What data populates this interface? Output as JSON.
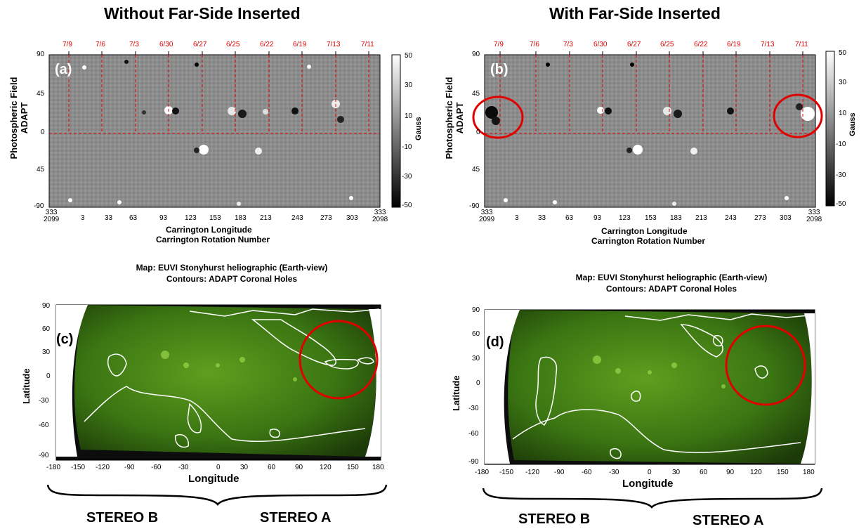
{
  "titles": {
    "left": "Without Far-Side Inserted",
    "right": "With Far-Side Inserted"
  },
  "top_panels": [
    {
      "tag": "(a)",
      "ylabel_line1": "Photospheric  Field",
      "ylabel_line2": "ADAPT"
    },
    {
      "tag": "(b)",
      "ylabel_line1": "Photospheric  Field",
      "ylabel_line2": "ADAPT"
    }
  ],
  "top_axes": {
    "dates": [
      "7/9",
      "7/6",
      "7/3",
      "6/30",
      "6/27",
      "6/25",
      "6/22",
      "6/19",
      "7/13",
      "7/11"
    ],
    "y_ticks": [
      "90",
      "45",
      "0",
      "45",
      "-90"
    ],
    "x_ticks": [
      "3",
      "33",
      "63",
      "93",
      "123",
      "153",
      "183",
      "213",
      "243",
      "273",
      "303"
    ],
    "x_first": "333",
    "x_first_sub": "2099",
    "x_last": "333",
    "x_last_sub": "2098",
    "xlabel": "Carrington Longitude",
    "xlabel2": "Carrington Rotation Number",
    "colorbar_ticks": [
      "50",
      "30",
      "10",
      "-10",
      "-30",
      "-50"
    ],
    "colorbar_unit": "Gauss"
  },
  "bottom_panels": [
    {
      "tag": "(c)"
    },
    {
      "tag": "(d)"
    }
  ],
  "bottom_axes": {
    "title_line1": "Map: EUVI Stonyhurst heliographic (Earth-view)",
    "title_line2": "Contours: ADAPT Coronal Holes",
    "ylabel": "Latitude",
    "xlabel": "Longitude",
    "y_ticks": [
      "90",
      "60",
      "30",
      "0",
      "-30",
      "-60",
      "-90"
    ],
    "x_ticks": [
      "-180",
      "-150",
      "-120",
      "-90",
      "-60",
      "-30",
      "0",
      "30",
      "60",
      "90",
      "120",
      "150",
      "180"
    ]
  },
  "stereo": {
    "b": "STEREO B",
    "a": "STEREO A"
  },
  "colors": {
    "highlight": "#e00000",
    "euv": "#2f6a10",
    "contour": "#ffffff"
  }
}
